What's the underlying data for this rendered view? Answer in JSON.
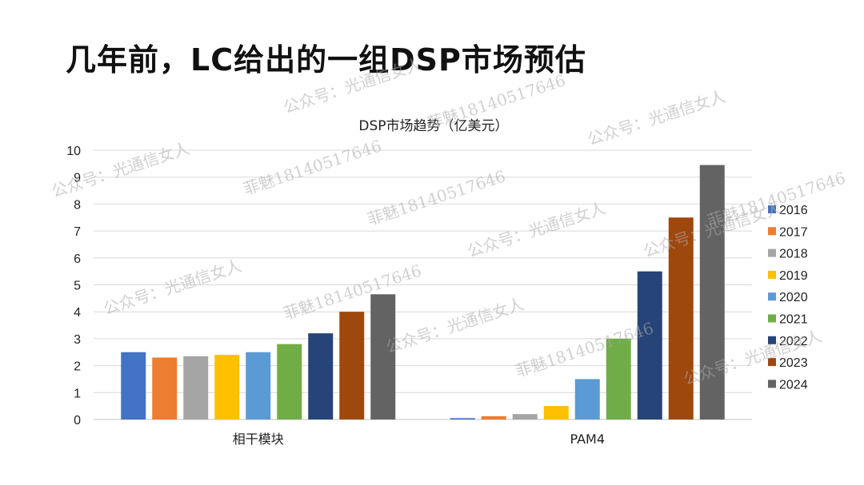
{
  "slide": {
    "title": "几年前，LC给出的一组DSP市场预估"
  },
  "chart_data": {
    "type": "bar",
    "title": "DSP市场趋势（亿美元）",
    "xlabel": "",
    "ylabel": "",
    "ylim": [
      0,
      10
    ],
    "yticks": [
      0,
      1,
      2,
      3,
      4,
      5,
      6,
      7,
      8,
      9,
      10
    ],
    "grid": true,
    "legend_position": "right",
    "categories": [
      "相干模块",
      "PAM4"
    ],
    "series": [
      {
        "name": "2016",
        "color": "#4472C4",
        "values": [
          2.5,
          0.05
        ]
      },
      {
        "name": "2017",
        "color": "#ED7D31",
        "values": [
          2.3,
          0.12
        ]
      },
      {
        "name": "2018",
        "color": "#A5A5A5",
        "values": [
          2.35,
          0.2
        ]
      },
      {
        "name": "2019",
        "color": "#FFC000",
        "values": [
          2.4,
          0.5
        ]
      },
      {
        "name": "2020",
        "color": "#5B9BD5",
        "values": [
          2.5,
          1.5
        ]
      },
      {
        "name": "2021",
        "color": "#70AD47",
        "values": [
          2.8,
          3.0
        ]
      },
      {
        "name": "2022",
        "color": "#264478",
        "values": [
          3.2,
          5.5
        ]
      },
      {
        "name": "2023",
        "color": "#9E480E",
        "values": [
          4.0,
          7.5
        ]
      },
      {
        "name": "2024",
        "color": "#636363",
        "values": [
          4.65,
          9.45
        ]
      }
    ]
  },
  "watermarks": [
    {
      "text": "公众号：光通信女人"
    },
    {
      "text": "菲魅18140517646"
    },
    {
      "text": "公众号：光通信女人"
    },
    {
      "text": "菲魅18140517646"
    },
    {
      "text": "公众号：光通信女人"
    },
    {
      "text": "菲魅18140517646"
    },
    {
      "text": "公众号：光通信女人"
    },
    {
      "text": "公众号：光通信女人"
    },
    {
      "text": "菲魅18140517646"
    },
    {
      "text": "公众号：光通信女人"
    },
    {
      "text": "菲魅18140517646"
    },
    {
      "text": "公众号：光通信女人"
    },
    {
      "text": "菲魅18140517646"
    },
    {
      "text": "公众号：光通信女人"
    }
  ]
}
